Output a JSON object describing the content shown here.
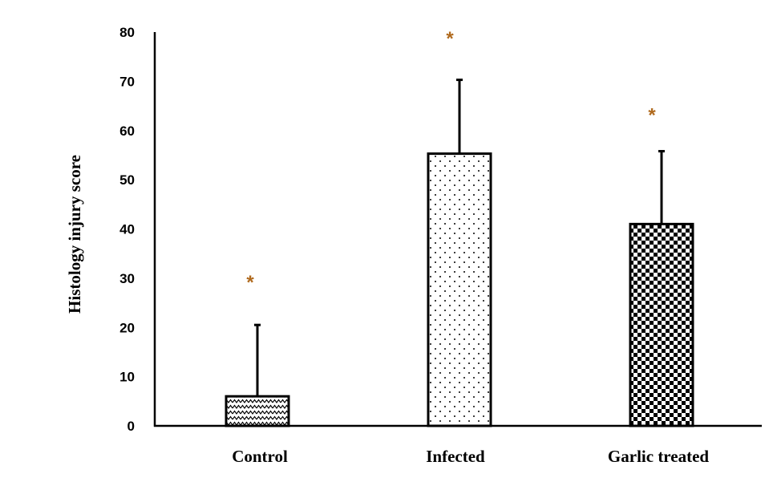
{
  "chart_data": {
    "type": "bar",
    "title": "",
    "xlabel": "",
    "ylabel": "Histology injury score",
    "ylim": [
      0,
      80
    ],
    "yticks": [
      0,
      10,
      20,
      30,
      40,
      50,
      60,
      70,
      80
    ],
    "grid": false,
    "legend": "none",
    "categories": [
      "Control",
      "Infected",
      "Garlic treated"
    ],
    "values": [
      6,
      55.3,
      41
    ],
    "error_upper": [
      14.5,
      15,
      14.8
    ],
    "patterns": [
      "zigzag",
      "dots",
      "checker"
    ],
    "significance_marker": "*",
    "significance_marker_color": "#b06a1e",
    "significance_marker_y": [
      29.5,
      79,
      63.5
    ],
    "colors": {
      "bar_outline": "#000000",
      "axis": "#000000",
      "error_bar": "#000000"
    }
  }
}
